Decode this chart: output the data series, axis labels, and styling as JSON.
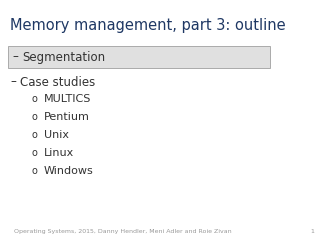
{
  "title": "Memory management, part 3: outline",
  "title_color": "#1F3864",
  "title_fontsize": 10.5,
  "bg_color": "#ffffff",
  "highlight_item": "Segmentation",
  "highlight_bg": "#E0E0E0",
  "highlight_border": "#AAAAAA",
  "seg_marker": "–",
  "bullet1_text": "Case studies",
  "bullet1_fontsize": 8.5,
  "bullet1_color": "#333333",
  "sub_items": [
    "MULTICS",
    "Pentium",
    "Unix",
    "Linux",
    "Windows"
  ],
  "sub_fontsize": 8,
  "sub_color": "#333333",
  "footer": "Operating Systems, 2015, Danny Hendler, Meni Adler and Roie Zivan",
  "footer_page": "1",
  "footer_fontsize": 4.5,
  "footer_color": "#999999"
}
